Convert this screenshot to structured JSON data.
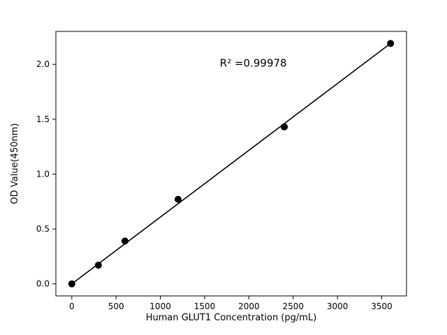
{
  "chart_data": {
    "type": "scatter",
    "title": "",
    "xlabel": "Human GLUT1 Concentration (pg/mL)",
    "ylabel": "OD Value(450nm)",
    "x": [
      0,
      300,
      600,
      1200,
      2400,
      3600
    ],
    "y": [
      0.0,
      0.17,
      0.39,
      0.77,
      1.43,
      2.19
    ],
    "fit_line": {
      "x": [
        0,
        3600
      ],
      "y": [
        0.0,
        2.19
      ]
    },
    "annotation": {
      "text": "R² =0.99978",
      "x": 2050,
      "y": 1.98
    },
    "xlim": [
      -180,
      3780
    ],
    "ylim": [
      -0.11,
      2.3
    ],
    "xticks": [
      0,
      500,
      1000,
      1500,
      2000,
      2500,
      3000,
      3500
    ],
    "xtick_labels": [
      "0",
      "500",
      "1000",
      "1500",
      "2000",
      "2500",
      "3000",
      "3500"
    ],
    "yticks": [
      0.0,
      0.5,
      1.0,
      1.5,
      2.0
    ],
    "ytick_labels": [
      "0.0",
      "0.5",
      "1.0",
      "1.5",
      "2.0"
    ],
    "grid": false,
    "legend": null,
    "marker_color": "#000000",
    "line_color": "#000000",
    "background_color": "#ffffff"
  }
}
